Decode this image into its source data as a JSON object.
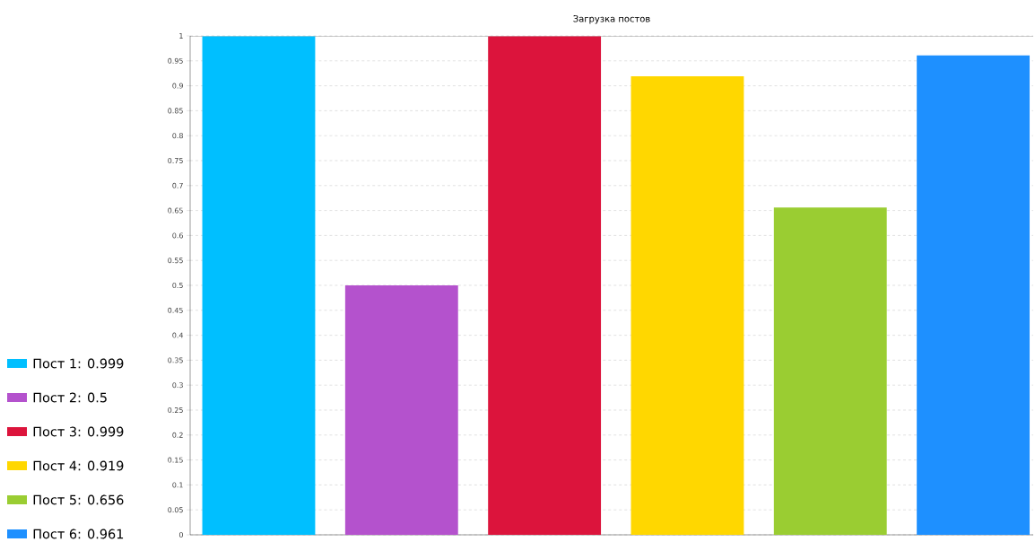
{
  "chart_data": {
    "type": "bar",
    "title": "Загрузка постов",
    "categories": [
      null,
      null,
      null,
      null,
      null,
      null
    ],
    "series": [
      {
        "name": "Пост 1: 0.999",
        "color": "#00bfff",
        "values": [
          0.999,
          null,
          null,
          null,
          null,
          null
        ]
      },
      {
        "name": "Пост 2: 0.5",
        "color": "#b452cd",
        "values": [
          null,
          0.5,
          null,
          null,
          null,
          null
        ]
      },
      {
        "name": "Пост 3: 0.999",
        "color": "#dc143c",
        "values": [
          null,
          null,
          0.999,
          null,
          null,
          null
        ]
      },
      {
        "name": "Пост 4: 0.919",
        "color": "#ffd700",
        "values": [
          null,
          null,
          null,
          0.919,
          null,
          null
        ]
      },
      {
        "name": "Пост 5: 0.656",
        "color": "#9acd32",
        "values": [
          null,
          null,
          null,
          null,
          0.656,
          null
        ]
      },
      {
        "name": "Пост 6: 0.961",
        "color": "#1e90ff",
        "values": [
          null,
          null,
          null,
          null,
          null,
          0.961
        ]
      }
    ],
    "ylim": [
      0,
      1
    ],
    "yticks": [
      0,
      0.05,
      0.1,
      0.15,
      0.2,
      0.25,
      0.3,
      0.35,
      0.4,
      0.45,
      0.5,
      0.55,
      0.6,
      0.65,
      0.7,
      0.75,
      0.8,
      0.85,
      0.9,
      0.95,
      1
    ],
    "grid": "y",
    "legend": "bottom left"
  }
}
